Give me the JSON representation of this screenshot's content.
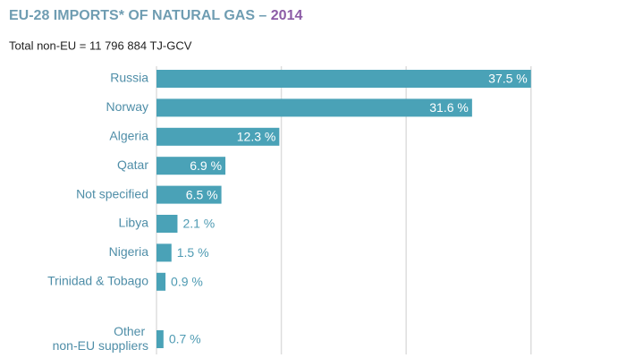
{
  "chart_data": {
    "type": "bar",
    "orientation": "horizontal",
    "title": "EU-28 IMPORTS* OF NATURAL GAS –",
    "title_year": "2014",
    "subtitle": "Total non-EU = 11 796 884 TJ-GCV",
    "categories": [
      "Russia",
      "Norway",
      "Algeria",
      "Qatar",
      "Not specified",
      "Libya",
      "Nigeria",
      "Trinidad & Tobago",
      "Other non-EU suppliers"
    ],
    "values": [
      37.5,
      31.6,
      12.3,
      6.9,
      6.5,
      2.1,
      1.5,
      0.9,
      0.7
    ],
    "value_labels": [
      "37.5 %",
      "31.6 %",
      "12.3 %",
      "6.9 %",
      "6.5 %",
      "2.1 %",
      "1.5 %",
      "0.9 %",
      "0.7 %"
    ],
    "color": "#4aa2b7",
    "xlim": [
      0,
      48
    ],
    "xticks": [
      0,
      12.5,
      25,
      37.5
    ],
    "grid": true
  }
}
